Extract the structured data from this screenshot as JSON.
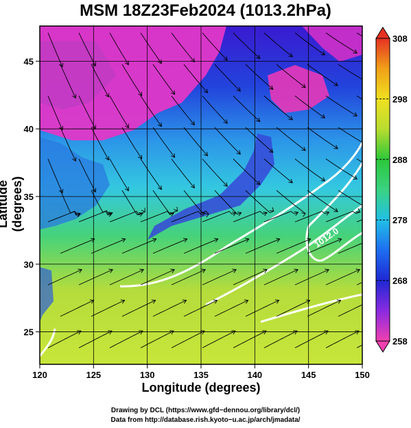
{
  "title": "MSM 18Z23Feb2024 (1013.2hPa)",
  "chart_data": {
    "type": "heatmap",
    "title": "MSM 18Z23Feb2024 (1013.2hPa)",
    "xlabel": "Longitude (degrees)",
    "ylabel": "Latitude  (degrees)",
    "x_range": [
      120,
      150
    ],
    "y_range": [
      22.6,
      47.6
    ],
    "x_ticks": [
      120,
      125,
      130,
      135,
      140,
      145,
      150
    ],
    "y_ticks": [
      25,
      30,
      35,
      40,
      45
    ],
    "grid": true,
    "colorbar": {
      "range": [
        258,
        308
      ],
      "ticks": [
        258,
        268,
        278,
        288,
        298,
        308
      ],
      "placement": "right"
    },
    "contour_label": "1012.0",
    "contour_labels_rendered": [
      "1012.0"
    ]
  },
  "credits": {
    "line1": "Drawing by DCL (https://www.gfd−dennou.org/library/dcl/)",
    "line2": "Data from http://database.rish.kyoto−u.ac.jp/arch/jmadata/"
  }
}
